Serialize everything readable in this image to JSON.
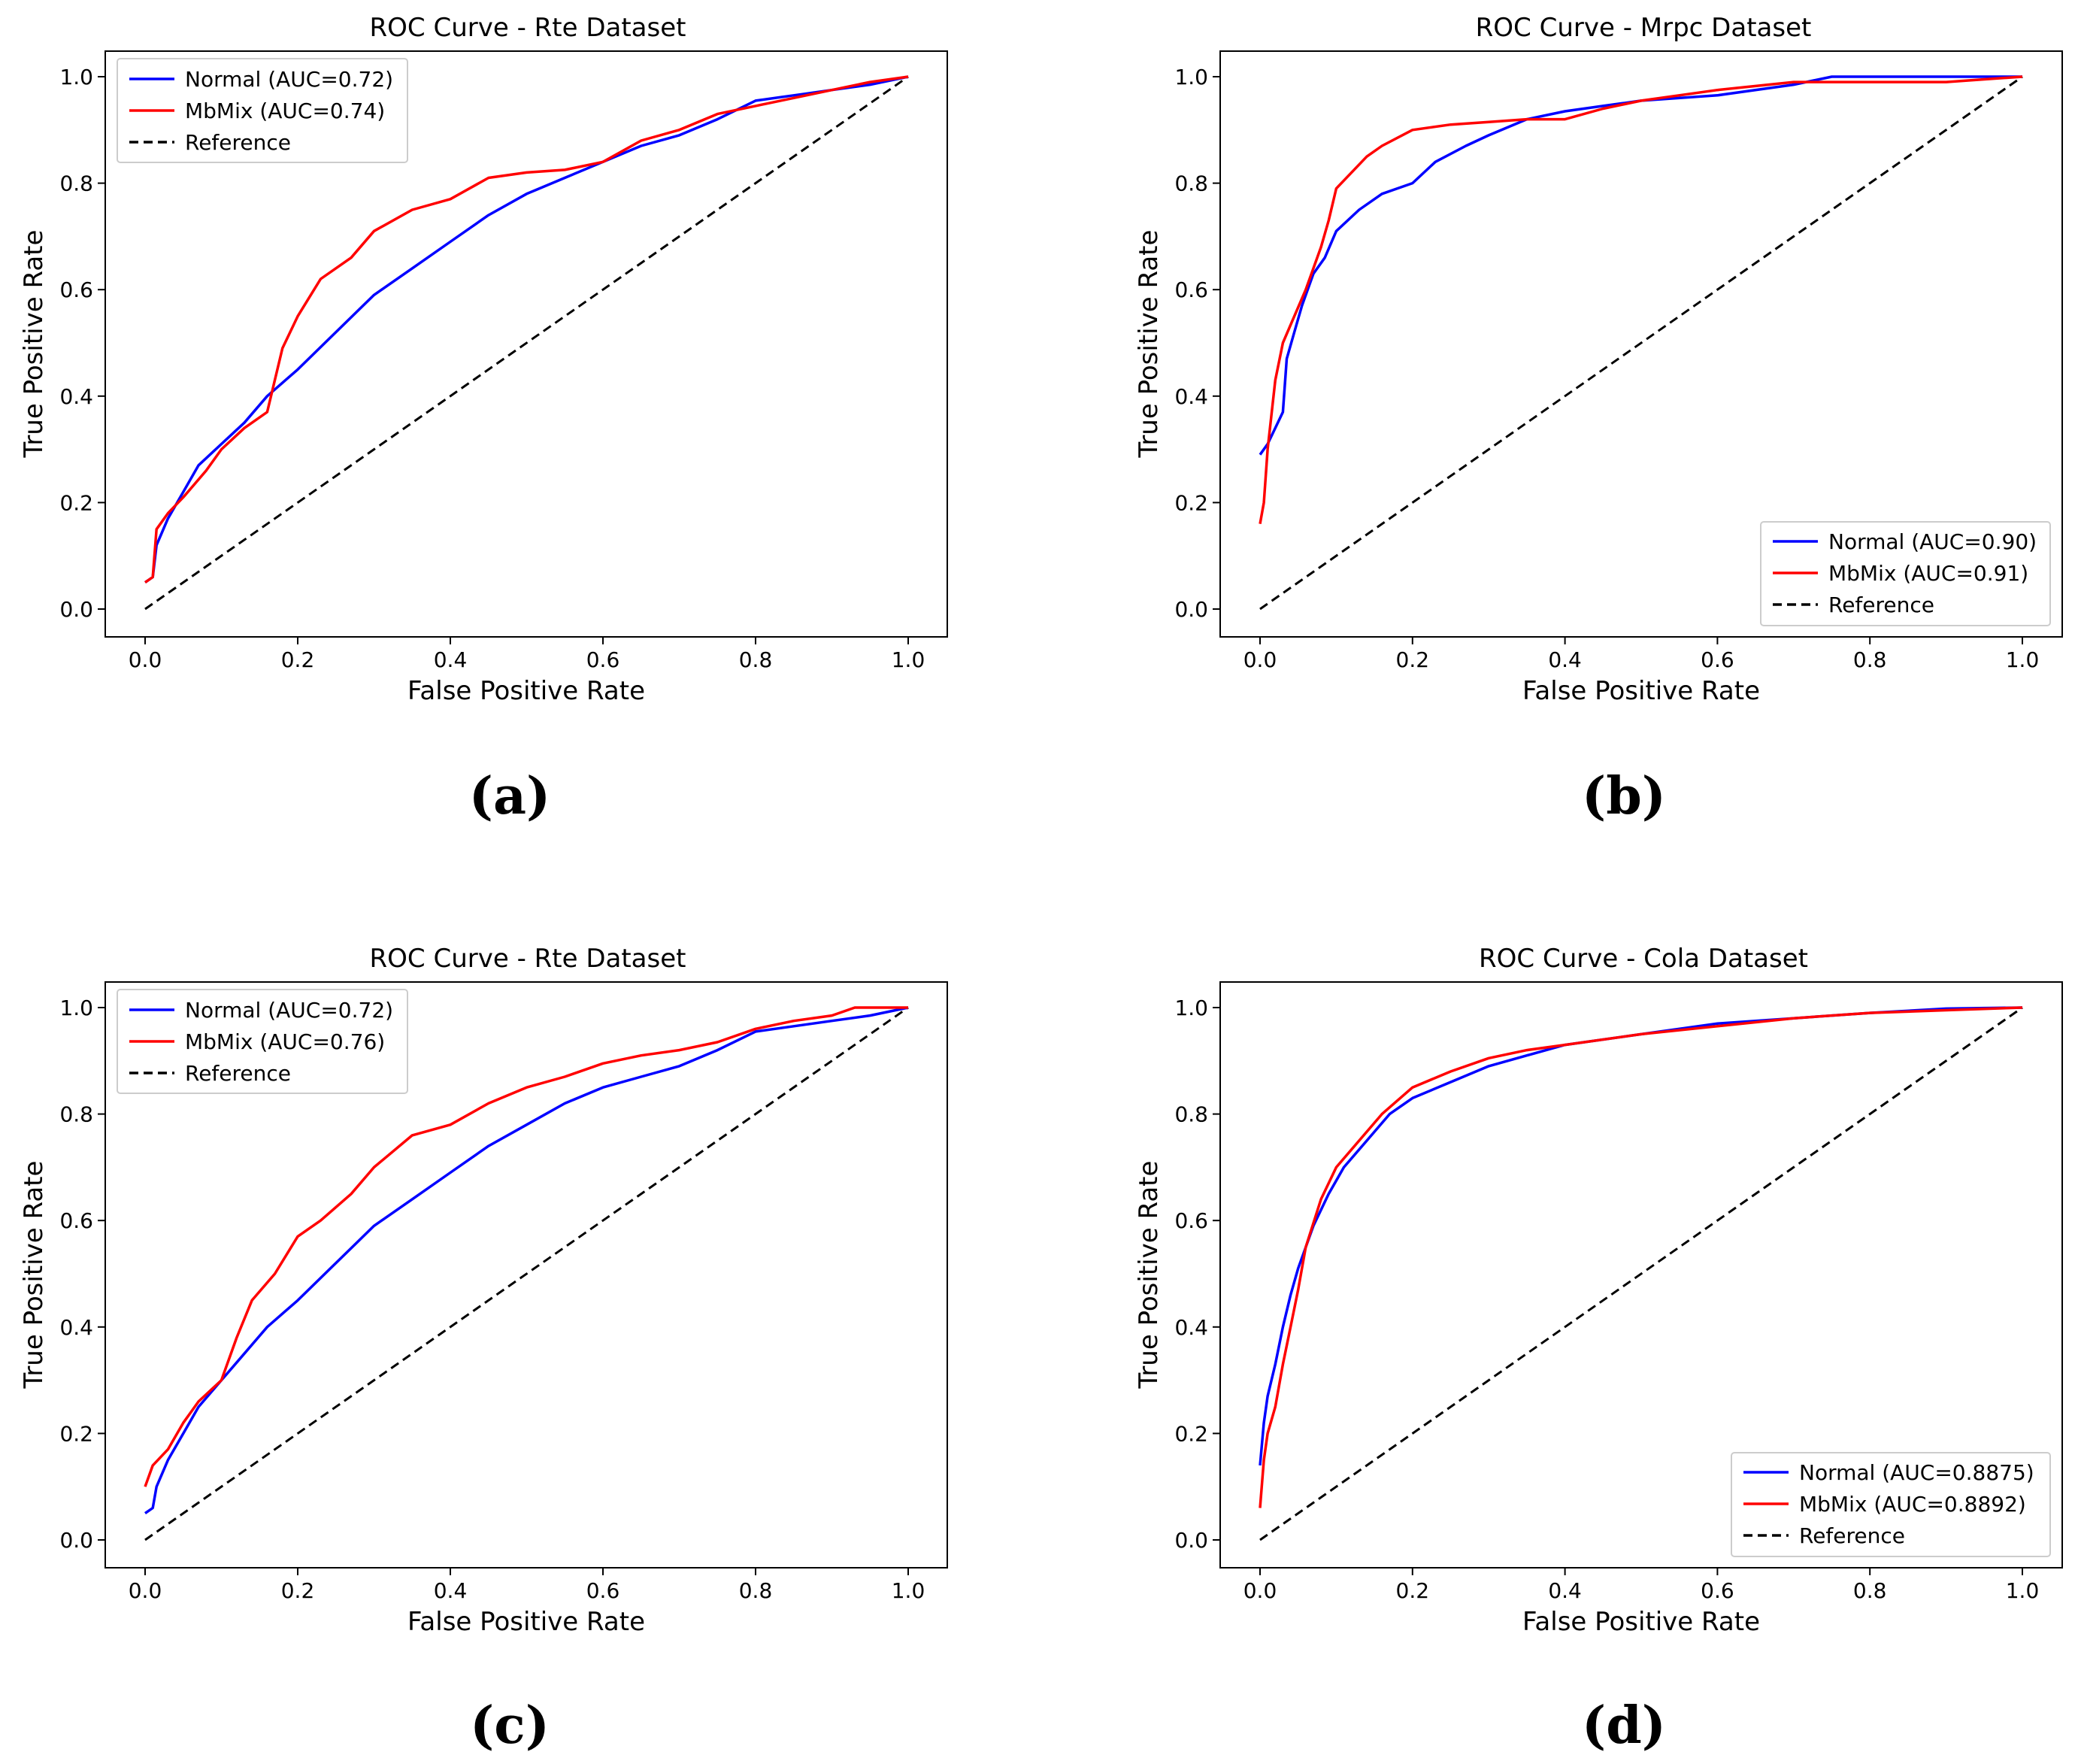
{
  "chart_data": [
    {
      "type": "line",
      "panel_label": "(a)",
      "title": "ROC Curve - Rte Dataset",
      "xlabel": "False Positive Rate",
      "ylabel": "True Positive Rate",
      "xlim": [
        0.0,
        1.0
      ],
      "ylim": [
        0.0,
        1.0
      ],
      "xticks": [
        "0.0",
        "0.2",
        "0.4",
        "0.6",
        "0.8",
        "1.0"
      ],
      "yticks": [
        "0.0",
        "0.2",
        "0.4",
        "0.6",
        "0.8",
        "1.0"
      ],
      "legend_position": "top-left",
      "series": [
        {
          "name": "Normal (AUC=0.72)",
          "color": "#0000ff",
          "style": "solid",
          "points": [
            [
              0,
              0.05
            ],
            [
              0.01,
              0.06
            ],
            [
              0.015,
              0.12
            ],
            [
              0.03,
              0.17
            ],
            [
              0.05,
              0.22
            ],
            [
              0.07,
              0.27
            ],
            [
              0.1,
              0.31
            ],
            [
              0.13,
              0.35
            ],
            [
              0.16,
              0.4
            ],
            [
              0.2,
              0.45
            ],
            [
              0.25,
              0.52
            ],
            [
              0.3,
              0.59
            ],
            [
              0.35,
              0.64
            ],
            [
              0.4,
              0.69
            ],
            [
              0.45,
              0.74
            ],
            [
              0.5,
              0.78
            ],
            [
              0.55,
              0.81
            ],
            [
              0.6,
              0.84
            ],
            [
              0.65,
              0.87
            ],
            [
              0.7,
              0.89
            ],
            [
              0.75,
              0.92
            ],
            [
              0.8,
              0.955
            ],
            [
              0.85,
              0.965
            ],
            [
              0.9,
              0.975
            ],
            [
              0.95,
              0.985
            ],
            [
              1.0,
              1.0
            ]
          ]
        },
        {
          "name": "MbMix (AUC=0.74)",
          "color": "#ff0000",
          "style": "solid",
          "points": [
            [
              0,
              0.05
            ],
            [
              0.01,
              0.06
            ],
            [
              0.015,
              0.15
            ],
            [
              0.03,
              0.18
            ],
            [
              0.05,
              0.21
            ],
            [
              0.08,
              0.26
            ],
            [
              0.1,
              0.3
            ],
            [
              0.13,
              0.34
            ],
            [
              0.16,
              0.37
            ],
            [
              0.18,
              0.49
            ],
            [
              0.2,
              0.55
            ],
            [
              0.23,
              0.62
            ],
            [
              0.27,
              0.66
            ],
            [
              0.3,
              0.71
            ],
            [
              0.35,
              0.75
            ],
            [
              0.4,
              0.77
            ],
            [
              0.45,
              0.81
            ],
            [
              0.5,
              0.82
            ],
            [
              0.55,
              0.825
            ],
            [
              0.6,
              0.84
            ],
            [
              0.65,
              0.88
            ],
            [
              0.7,
              0.9
            ],
            [
              0.75,
              0.93
            ],
            [
              0.8,
              0.945
            ],
            [
              0.85,
              0.96
            ],
            [
              0.9,
              0.975
            ],
            [
              0.95,
              0.99
            ],
            [
              1.0,
              1.0
            ]
          ]
        },
        {
          "name": "Reference",
          "color": "#000000",
          "style": "dashed",
          "points": [
            [
              0,
              0
            ],
            [
              1,
              1
            ]
          ]
        }
      ]
    },
    {
      "type": "line",
      "panel_label": "(b)",
      "title": "ROC Curve - Mrpc Dataset",
      "xlabel": "False Positive Rate",
      "ylabel": "True Positive Rate",
      "xlim": [
        0.0,
        1.0
      ],
      "ylim": [
        0.0,
        1.0
      ],
      "xticks": [
        "0.0",
        "0.2",
        "0.4",
        "0.6",
        "0.8",
        "1.0"
      ],
      "yticks": [
        "0.0",
        "0.2",
        "0.4",
        "0.6",
        "0.8",
        "1.0"
      ],
      "legend_position": "bottom-right",
      "series": [
        {
          "name": "Normal (AUC=0.90)",
          "color": "#0000ff",
          "style": "solid",
          "points": [
            [
              0,
              0.29
            ],
            [
              0.01,
              0.31
            ],
            [
              0.02,
              0.34
            ],
            [
              0.03,
              0.37
            ],
            [
              0.035,
              0.47
            ],
            [
              0.045,
              0.52
            ],
            [
              0.055,
              0.57
            ],
            [
              0.07,
              0.63
            ],
            [
              0.085,
              0.66
            ],
            [
              0.1,
              0.71
            ],
            [
              0.13,
              0.75
            ],
            [
              0.16,
              0.78
            ],
            [
              0.2,
              0.8
            ],
            [
              0.23,
              0.84
            ],
            [
              0.27,
              0.87
            ],
            [
              0.3,
              0.89
            ],
            [
              0.35,
              0.92
            ],
            [
              0.4,
              0.935
            ],
            [
              0.45,
              0.945
            ],
            [
              0.5,
              0.955
            ],
            [
              0.6,
              0.965
            ],
            [
              0.7,
              0.985
            ],
            [
              0.75,
              1.0
            ],
            [
              0.85,
              1.0
            ],
            [
              1.0,
              1.0
            ]
          ]
        },
        {
          "name": "MbMix (AUC=0.91)",
          "color": "#ff0000",
          "style": "solid",
          "points": [
            [
              0,
              0.16
            ],
            [
              0.005,
              0.2
            ],
            [
              0.01,
              0.3
            ],
            [
              0.02,
              0.43
            ],
            [
              0.03,
              0.5
            ],
            [
              0.045,
              0.55
            ],
            [
              0.06,
              0.6
            ],
            [
              0.08,
              0.68
            ],
            [
              0.09,
              0.73
            ],
            [
              0.1,
              0.79
            ],
            [
              0.12,
              0.82
            ],
            [
              0.14,
              0.85
            ],
            [
              0.16,
              0.87
            ],
            [
              0.2,
              0.9
            ],
            [
              0.25,
              0.91
            ],
            [
              0.3,
              0.915
            ],
            [
              0.35,
              0.92
            ],
            [
              0.4,
              0.92
            ],
            [
              0.45,
              0.94
            ],
            [
              0.5,
              0.955
            ],
            [
              0.6,
              0.975
            ],
            [
              0.7,
              0.99
            ],
            [
              0.8,
              0.99
            ],
            [
              0.9,
              0.99
            ],
            [
              0.95,
              0.995
            ],
            [
              1.0,
              1.0
            ]
          ]
        },
        {
          "name": "Reference",
          "color": "#000000",
          "style": "dashed",
          "points": [
            [
              0,
              0
            ],
            [
              1,
              1
            ]
          ]
        }
      ]
    },
    {
      "type": "line",
      "panel_label": "(c)",
      "title": "ROC Curve - Rte Dataset",
      "xlabel": "False Positive Rate",
      "ylabel": "True Positive Rate",
      "xlim": [
        0.0,
        1.0
      ],
      "ylim": [
        0.0,
        1.0
      ],
      "xticks": [
        "0.0",
        "0.2",
        "0.4",
        "0.6",
        "0.8",
        "1.0"
      ],
      "yticks": [
        "0.0",
        "0.2",
        "0.4",
        "0.6",
        "0.8",
        "1.0"
      ],
      "legend_position": "top-left",
      "series": [
        {
          "name": "Normal (AUC=0.72)",
          "color": "#0000ff",
          "style": "solid",
          "points": [
            [
              0,
              0.05
            ],
            [
              0.01,
              0.06
            ],
            [
              0.015,
              0.1
            ],
            [
              0.03,
              0.15
            ],
            [
              0.05,
              0.2
            ],
            [
              0.07,
              0.25
            ],
            [
              0.1,
              0.3
            ],
            [
              0.13,
              0.35
            ],
            [
              0.16,
              0.4
            ],
            [
              0.2,
              0.45
            ],
            [
              0.25,
              0.52
            ],
            [
              0.3,
              0.59
            ],
            [
              0.35,
              0.64
            ],
            [
              0.4,
              0.69
            ],
            [
              0.45,
              0.74
            ],
            [
              0.5,
              0.78
            ],
            [
              0.55,
              0.82
            ],
            [
              0.6,
              0.85
            ],
            [
              0.65,
              0.87
            ],
            [
              0.7,
              0.89
            ],
            [
              0.75,
              0.92
            ],
            [
              0.8,
              0.955
            ],
            [
              0.85,
              0.965
            ],
            [
              0.9,
              0.975
            ],
            [
              0.95,
              0.985
            ],
            [
              1.0,
              1.0
            ]
          ]
        },
        {
          "name": "MbMix (AUC=0.76)",
          "color": "#ff0000",
          "style": "solid",
          "points": [
            [
              0,
              0.1
            ],
            [
              0.01,
              0.14
            ],
            [
              0.03,
              0.17
            ],
            [
              0.05,
              0.22
            ],
            [
              0.07,
              0.26
            ],
            [
              0.1,
              0.3
            ],
            [
              0.12,
              0.38
            ],
            [
              0.14,
              0.45
            ],
            [
              0.17,
              0.5
            ],
            [
              0.2,
              0.57
            ],
            [
              0.23,
              0.6
            ],
            [
              0.27,
              0.65
            ],
            [
              0.3,
              0.7
            ],
            [
              0.35,
              0.76
            ],
            [
              0.4,
              0.78
            ],
            [
              0.45,
              0.82
            ],
            [
              0.5,
              0.85
            ],
            [
              0.55,
              0.87
            ],
            [
              0.6,
              0.895
            ],
            [
              0.65,
              0.91
            ],
            [
              0.7,
              0.92
            ],
            [
              0.75,
              0.935
            ],
            [
              0.8,
              0.96
            ],
            [
              0.85,
              0.975
            ],
            [
              0.9,
              0.985
            ],
            [
              0.93,
              1.0
            ],
            [
              1.0,
              1.0
            ]
          ]
        },
        {
          "name": "Reference",
          "color": "#000000",
          "style": "dashed",
          "points": [
            [
              0,
              0
            ],
            [
              1,
              1
            ]
          ]
        }
      ]
    },
    {
      "type": "line",
      "panel_label": "(d)",
      "title": "ROC Curve - Cola Dataset",
      "xlabel": "False Positive Rate",
      "ylabel": "True Positive Rate",
      "xlim": [
        0.0,
        1.0
      ],
      "ylim": [
        0.0,
        1.0
      ],
      "xticks": [
        "0.0",
        "0.2",
        "0.4",
        "0.6",
        "0.8",
        "1.0"
      ],
      "yticks": [
        "0.0",
        "0.2",
        "0.4",
        "0.6",
        "0.8",
        "1.0"
      ],
      "legend_position": "bottom-right",
      "series": [
        {
          "name": "Normal (AUC=0.8875)",
          "color": "#0000ff",
          "style": "solid",
          "points": [
            [
              0,
              0.14
            ],
            [
              0.005,
              0.22
            ],
            [
              0.01,
              0.27
            ],
            [
              0.02,
              0.33
            ],
            [
              0.03,
              0.4
            ],
            [
              0.04,
              0.46
            ],
            [
              0.05,
              0.51
            ],
            [
              0.07,
              0.59
            ],
            [
              0.09,
              0.65
            ],
            [
              0.11,
              0.7
            ],
            [
              0.14,
              0.75
            ],
            [
              0.17,
              0.8
            ],
            [
              0.2,
              0.83
            ],
            [
              0.25,
              0.86
            ],
            [
              0.3,
              0.89
            ],
            [
              0.35,
              0.91
            ],
            [
              0.4,
              0.93
            ],
            [
              0.5,
              0.95
            ],
            [
              0.6,
              0.97
            ],
            [
              0.7,
              0.98
            ],
            [
              0.8,
              0.99
            ],
            [
              0.9,
              0.998
            ],
            [
              1.0,
              1.0
            ]
          ]
        },
        {
          "name": "MbMix (AUC=0.8892)",
          "color": "#ff0000",
          "style": "solid",
          "points": [
            [
              0,
              0.06
            ],
            [
              0.005,
              0.15
            ],
            [
              0.01,
              0.2
            ],
            [
              0.02,
              0.25
            ],
            [
              0.03,
              0.33
            ],
            [
              0.04,
              0.4
            ],
            [
              0.05,
              0.47
            ],
            [
              0.06,
              0.55
            ],
            [
              0.08,
              0.64
            ],
            [
              0.1,
              0.7
            ],
            [
              0.13,
              0.75
            ],
            [
              0.16,
              0.8
            ],
            [
              0.2,
              0.85
            ],
            [
              0.25,
              0.88
            ],
            [
              0.3,
              0.905
            ],
            [
              0.35,
              0.92
            ],
            [
              0.4,
              0.93
            ],
            [
              0.5,
              0.95
            ],
            [
              0.6,
              0.965
            ],
            [
              0.7,
              0.98
            ],
            [
              0.8,
              0.99
            ],
            [
              0.9,
              0.995
            ],
            [
              1.0,
              1.0
            ]
          ]
        },
        {
          "name": "Reference",
          "color": "#000000",
          "style": "dashed",
          "points": [
            [
              0,
              0
            ],
            [
              1,
              1
            ]
          ]
        }
      ]
    }
  ]
}
